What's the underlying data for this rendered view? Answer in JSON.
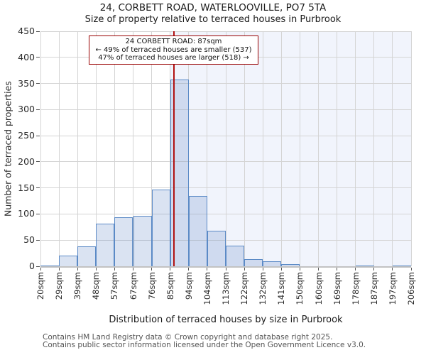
{
  "title": "24, CORBETT ROAD, WATERLOOVILLE, PO7 5TA",
  "subtitle": "Size of property relative to terraced houses in Purbrook",
  "y_axis_label": "Number of terraced properties",
  "x_axis_label": "Distribution of terraced houses by size in Purbrook",
  "annotation": {
    "line1": "24 CORBETT ROAD: 87sqm",
    "line2": "← 49% of terraced houses are smaller (537)",
    "line3": "47% of terraced houses are larger (518) →"
  },
  "footer": {
    "line1": "Contains HM Land Registry data © Crown copyright and database right 2025.",
    "line2": "Contains public sector information licensed under the Open Government Licence v3.0."
  },
  "chart_data": {
    "type": "bar",
    "title": "24, CORBETT ROAD, WATERLOOVILLE, PO7 5TA",
    "subtitle": "Size of property relative to terraced houses in Purbrook",
    "xlabel": "Distribution of terraced houses by size in Purbrook",
    "ylabel": "Number of terraced properties",
    "categories": [
      "20sqm",
      "29sqm",
      "39sqm",
      "48sqm",
      "57sqm",
      "67sqm",
      "76sqm",
      "85sqm",
      "94sqm",
      "104sqm",
      "113sqm",
      "122sqm",
      "132sqm",
      "141sqm",
      "150sqm",
      "160sqm",
      "169sqm",
      "178sqm",
      "187sqm",
      "197sqm",
      "206sqm"
    ],
    "values": [
      2,
      20,
      38,
      82,
      94,
      97,
      147,
      357,
      135,
      68,
      40,
      13,
      10,
      4,
      0,
      0,
      0,
      2,
      0,
      2
    ],
    "ylim": [
      0,
      450
    ],
    "ytick_step": 50,
    "grid": true,
    "legend": "none",
    "marker": {
      "label": "87sqm",
      "tick_position": 7.222
    },
    "shade_from_tick": 7,
    "colors": {
      "bar_fill": "#dce6f5",
      "bar_stroke": "#5b8ac6",
      "shade_region": "#f1f4fc",
      "marker_line": "#b11212",
      "annotation_border": "#990000",
      "gridline": "#d4d4d4",
      "footer_text": "#545454"
    }
  }
}
